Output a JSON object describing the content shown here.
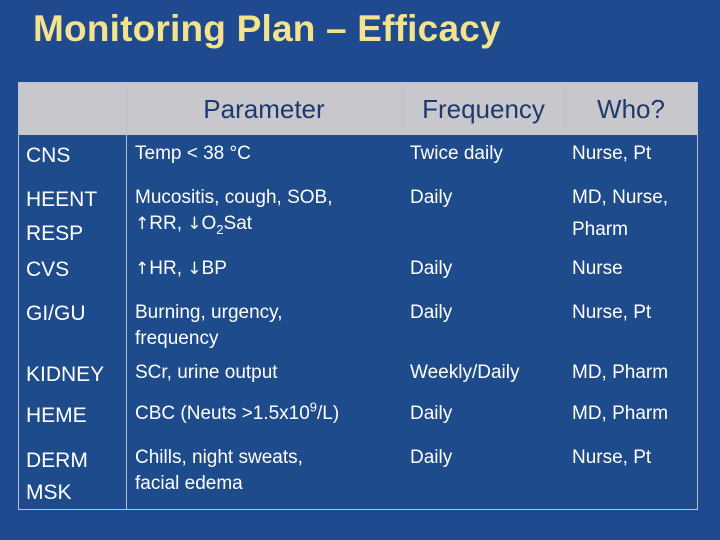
{
  "title": "Monitoring Plan – Efficacy",
  "headers": {
    "category": "",
    "parameter": "Parameter",
    "frequency": "Frequency",
    "who": "Who?"
  },
  "rows": [
    {
      "category": "CNS",
      "parameter": "Temp < 38 °C",
      "frequency": "Twice daily",
      "who": "Nurse, Pt"
    },
    {
      "category_line1": "HEENT",
      "category_line2": "RESP",
      "parameter_line1": "Mucositis, cough, SOB,",
      "parameter_rr": "RR,",
      "parameter_o2": "O",
      "parameter_o2_sub": "2",
      "parameter_o2_tail": "Sat",
      "frequency": "Daily",
      "who_line1": "MD, Nurse,",
      "who_line2": "Pharm"
    },
    {
      "category": "CVS",
      "parameter_hr": "HR,",
      "parameter_bp": "BP",
      "frequency": "Daily",
      "who": "Nurse"
    },
    {
      "category": "GI/GU",
      "parameter_line1": "Burning, urgency,",
      "parameter_line2": "frequency",
      "frequency": "Daily",
      "who": "Nurse, Pt"
    },
    {
      "category": "KIDNEY",
      "parameter": "SCr, urine output",
      "frequency": "Weekly/Daily",
      "who": "MD, Pharm"
    },
    {
      "category": "HEME",
      "parameter_pre": "CBC (Neuts >1.5x10",
      "parameter_sup": "9",
      "parameter_post": "/L)",
      "frequency": "Daily",
      "who": "MD, Pharm"
    },
    {
      "category_line1": "DERM",
      "category_line2": "MSK",
      "parameter_line1": "Chills, night sweats,",
      "parameter_line2": "facial edema",
      "frequency": "Daily",
      "who": "Nurse, Pt"
    }
  ],
  "icons": {
    "up_arrow": "up-arrow-icon",
    "down_arrow": "down-arrow-icon"
  },
  "colors": {
    "background": "#1f4a8f",
    "title": "#f3e38d",
    "header_fill": "#c8c8cc",
    "header_text": "#1d3a6e",
    "cell_text": "#ffffff"
  }
}
